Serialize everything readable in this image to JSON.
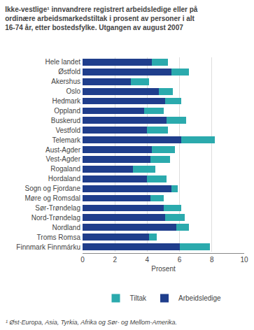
{
  "chart_data": {
    "type": "bar",
    "orientation": "horizontal",
    "stacked": true,
    "title": "Ikke-vestlige¹ innvandrere registrert arbeidsledige eller på\nordinære arbeidsmarkedstiltak i prosent av personer i alt\n16-74 år, etter bostedsfylke. Utgangen av august 2007",
    "xlabel": "Prosent",
    "annotations": [
      "¹ Øst-Europa, Asia, Tyrkia, Afrika og Sør- og Mellom-Amerika."
    ],
    "categories": [
      "Hele landet",
      "Østfold",
      "Akershus",
      "Oslo",
      "Hedmark",
      "Oppland",
      "Buskerud",
      "Vestfold",
      "Telemark",
      "Aust-Agder",
      "Vest-Agder",
      "Rogaland",
      "Hordaland",
      "Sogn og Fjordane",
      "Møre og Romsdal",
      "Sør-Trøndelag",
      "Nord-Trøndelag",
      "Nordland",
      "Troms Romsa",
      "Finnmark Finnmárku"
    ],
    "series": [
      {
        "name": "Arbeidsledige",
        "color": "#1f3e8c",
        "values": [
          4.3,
          5.5,
          3.0,
          4.7,
          5.1,
          3.8,
          5.2,
          4.0,
          6.1,
          4.3,
          4.2,
          3.1,
          4.0,
          5.5,
          4.2,
          5.0,
          5.1,
          5.8,
          4.1,
          6.0
        ]
      },
      {
        "name": "Tiltak",
        "color": "#2baaad",
        "values": [
          1.0,
          1.1,
          1.1,
          0.9,
          1.0,
          1.2,
          1.2,
          1.3,
          2.1,
          1.4,
          1.2,
          1.4,
          1.2,
          0.4,
          0.8,
          1.1,
          1.2,
          0.8,
          0.5,
          1.9
        ]
      }
    ],
    "xlim": [
      0,
      10
    ],
    "xticks": [
      0,
      2,
      4,
      6,
      8,
      10
    ],
    "grid": true,
    "legend": "bottom"
  }
}
